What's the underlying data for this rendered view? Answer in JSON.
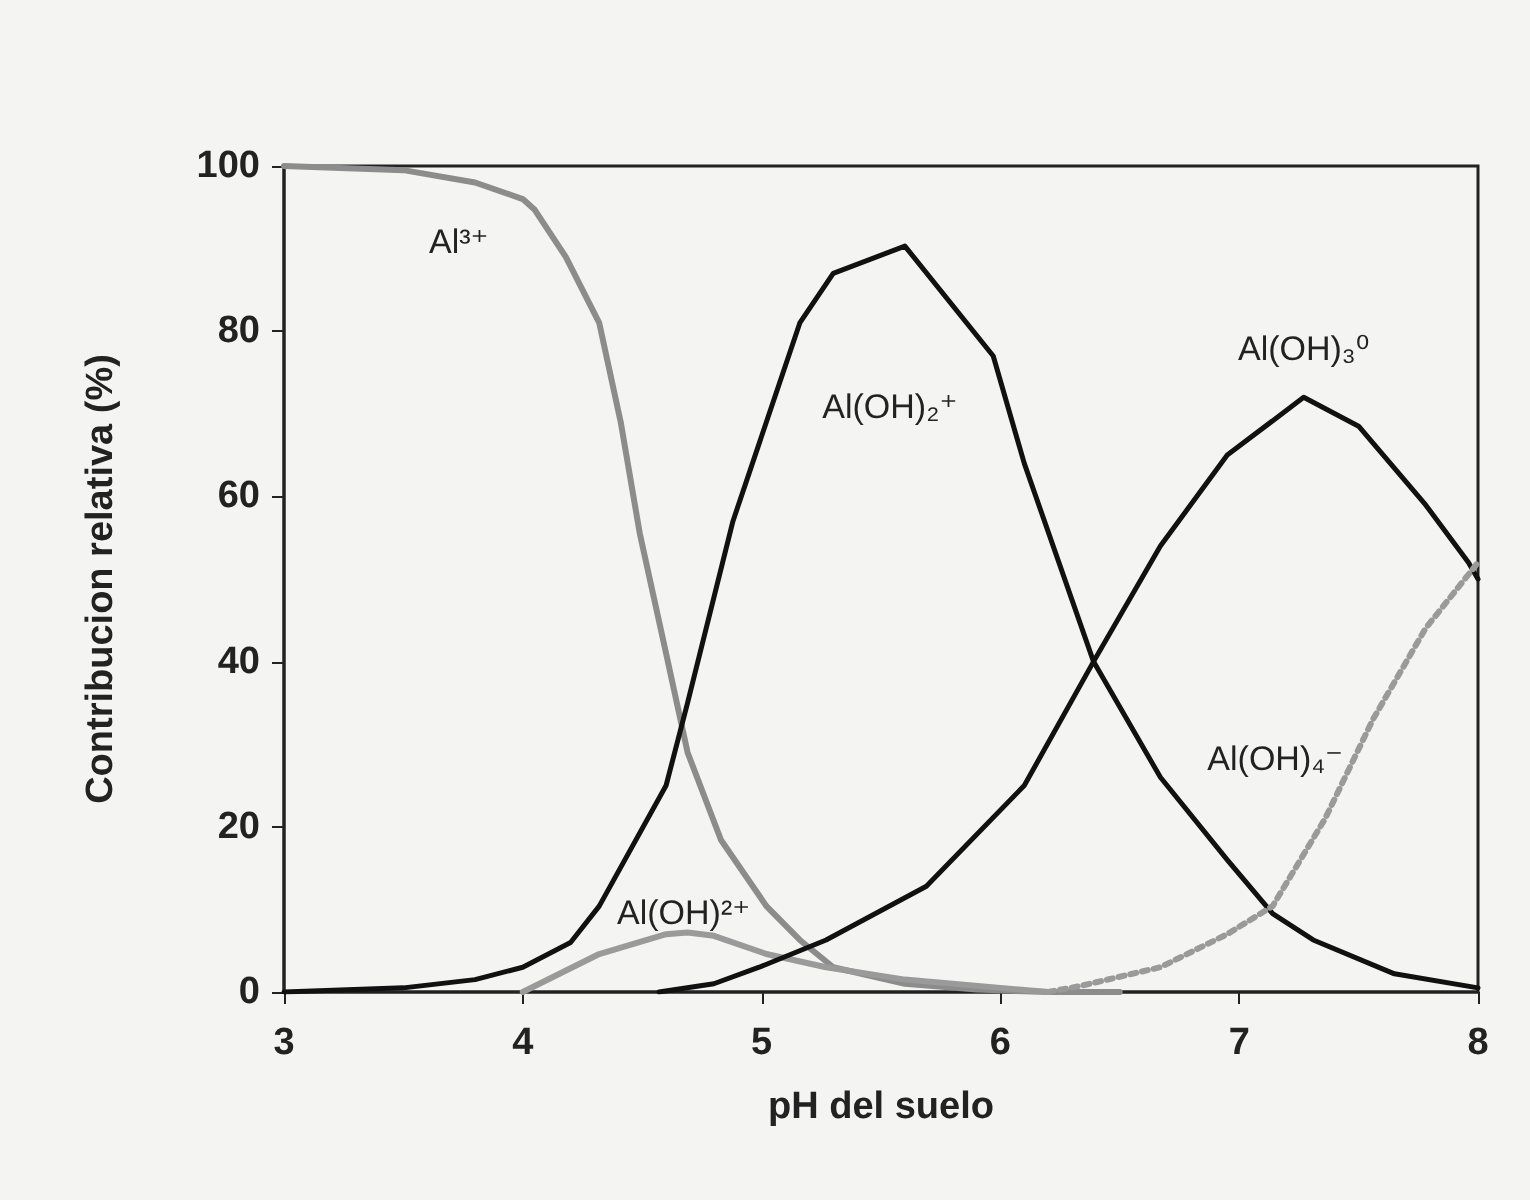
{
  "chart_data": {
    "type": "line",
    "xlabel": "pH del suelo",
    "ylabel": "Contribucion relativa (%)",
    "xlim": [
      3,
      8
    ],
    "xticks": [
      3,
      4,
      5,
      6,
      7,
      8
    ],
    "ylim": [
      0,
      100
    ],
    "yticks": [
      0,
      20,
      40,
      60,
      80,
      100
    ],
    "grid": false,
    "marker": "none",
    "series": [
      {
        "name": "Al³⁺",
        "color": "#8c8c8c",
        "line_style": "solid",
        "x": [
          3,
          3.5,
          3.8,
          4.0,
          4.05,
          4.18,
          4.32,
          4.41,
          4.49,
          4.6,
          4.69,
          4.83,
          5.02,
          5.16,
          5.3,
          5.6,
          5.9,
          6.2,
          6.5
        ],
        "values": [
          100,
          99.5,
          98,
          96,
          94.7,
          89,
          81,
          69,
          55.5,
          41,
          29,
          18.4,
          10.4,
          6.3,
          3,
          1,
          0.3,
          0,
          0
        ]
      },
      {
        "name": "Al(OH)²⁺",
        "color": "#9a9a9a",
        "line_style": "solid",
        "x": [
          4.0,
          4.32,
          4.6,
          4.69,
          4.8,
          5.02,
          5.27,
          5.6,
          6.0,
          6.2
        ],
        "values": [
          0,
          4.6,
          7,
          7.2,
          6.8,
          4.6,
          3,
          1.5,
          0.5,
          0
        ]
      },
      {
        "name": "Al(OH)₂⁺",
        "color": "#111111",
        "line_style": "solid",
        "x": [
          3,
          3.5,
          3.8,
          4.0,
          4.2,
          4.32,
          4.6,
          4.69,
          4.88,
          5.02,
          5.16,
          5.3,
          5.6,
          5.97,
          6.1,
          6.39,
          6.67,
          6.95,
          7.14,
          7.31,
          7.65,
          8
        ],
        "values": [
          0,
          0.5,
          1.5,
          3,
          6,
          10.4,
          25,
          35,
          57,
          69,
          81,
          87,
          90.3,
          77,
          64,
          40,
          26,
          16,
          9.5,
          6.3,
          2.2,
          0.5
        ]
      },
      {
        "name": "Al(OH)₃⁰",
        "color": "#111111",
        "line_style": "solid",
        "x": [
          4.57,
          4.8,
          4.99,
          5.27,
          5.69,
          6.1,
          6.39,
          6.67,
          6.95,
          7.27,
          7.5,
          7.78,
          7.96,
          8
        ],
        "values": [
          0,
          1,
          3,
          6.3,
          12.8,
          25,
          40,
          54,
          65,
          72,
          68.5,
          59,
          52,
          50
        ]
      },
      {
        "name": "Al(OH)₄⁻",
        "color": "#9a9a9a",
        "line_style": "dotted",
        "x": [
          6.2,
          6.33,
          6.67,
          6.95,
          7.14,
          7.36,
          7.56,
          7.78,
          8
        ],
        "values": [
          0,
          0.7,
          3,
          7,
          10.4,
          21,
          33,
          44,
          52
        ]
      }
    ]
  }
}
